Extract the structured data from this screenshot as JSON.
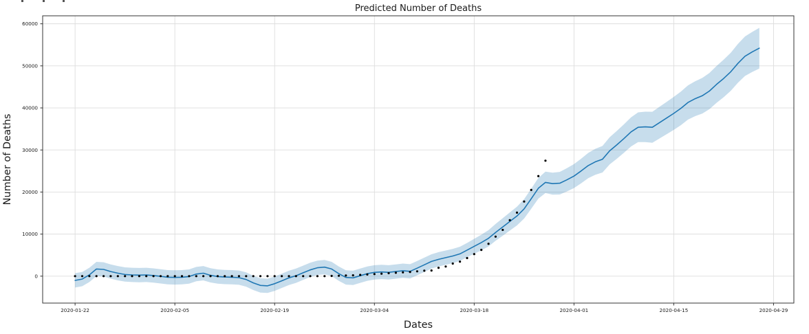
{
  "figure": {
    "background": "#ffffff",
    "top_edge_artifact": {
      "marks_x": [
        31,
        62,
        91
      ]
    }
  },
  "chart_data": {
    "type": "line",
    "title": "Predicted Number of Deaths",
    "xlabel": "Dates",
    "ylabel": "Number of Deaths",
    "x_unit": "days since 2020-01-22 (daily cadence)",
    "start_date": "2020-01-22",
    "grid": true,
    "legend": "none",
    "xlim_days": [
      -4.55,
      100.85
    ],
    "ylim": [
      -6400,
      61900
    ],
    "x_ticks": {
      "days": [
        0,
        14,
        28,
        42,
        56,
        70,
        84,
        98
      ],
      "labels": [
        "2020-01-22",
        "2020-02-05",
        "2020-02-19",
        "2020-03-04",
        "2020-03-18",
        "2020-04-01",
        "2020-04-15",
        "2020-04-29"
      ]
    },
    "y_ticks": {
      "values": [
        0,
        10000,
        20000,
        30000,
        40000,
        50000,
        60000
      ],
      "labels": [
        "0",
        "10000",
        "20000",
        "30000",
        "40000",
        "50000",
        "60000"
      ]
    },
    "colors": {
      "predicted_line": "#1f77b4",
      "confidence_band": "rgba(31,119,180,0.25)",
      "actual_dots": "#000000",
      "grid": "#dddddd",
      "spine": "#333333",
      "tick_text": "#1a1a1a"
    },
    "series": [
      {
        "name": "predicted",
        "style": "line",
        "first_day": 0,
        "values": [
          -1000,
          -700,
          300,
          1700,
          1600,
          1100,
          700,
          400,
          300,
          250,
          300,
          150,
          -50,
          -250,
          -300,
          -250,
          -100,
          500,
          700,
          200,
          -100,
          -200,
          -250,
          -350,
          -800,
          -1600,
          -2200,
          -2300,
          -1800,
          -1100,
          -400,
          100,
          800,
          1500,
          2000,
          2150,
          1700,
          600,
          -300,
          -400,
          100,
          600,
          900,
          1000,
          900,
          1100,
          1300,
          1150,
          1900,
          2700,
          3500,
          4000,
          4400,
          4800,
          5300,
          6200,
          7100,
          8000,
          9000,
          10400,
          11700,
          13000,
          14300,
          16000,
          18400,
          20900,
          22300,
          22000,
          22100,
          22900,
          23800,
          25000,
          26300,
          27200,
          27800,
          29800,
          31200,
          32700,
          34300,
          35400,
          35500,
          35400,
          36500,
          37600,
          38700,
          39900,
          41300,
          42200,
          42900,
          44000,
          45600,
          47000,
          48600,
          50600,
          52300,
          53300,
          54200
        ]
      },
      {
        "name": "confidence-band",
        "style": "band",
        "first_day": 0,
        "half_width": [
          1700,
          1700,
          1700,
          1700,
          1700,
          1700,
          1700,
          1700,
          1700,
          1700,
          1700,
          1700,
          1700,
          1700,
          1700,
          1700,
          1700,
          1700,
          1700,
          1700,
          1700,
          1700,
          1700,
          1700,
          1700,
          1700,
          1700,
          1700,
          1700,
          1700,
          1700,
          1700,
          1700,
          1700,
          1700,
          1700,
          1700,
          1700,
          1700,
          1700,
          1700,
          1700,
          1700,
          1700,
          1700,
          1700,
          1700,
          1700,
          1700,
          1700,
          1700,
          1700,
          1700,
          1700,
          1700,
          1700,
          1780,
          1850,
          1930,
          2000,
          2080,
          2160,
          2230,
          2310,
          2390,
          2460,
          2540,
          2620,
          2690,
          2770,
          2850,
          2920,
          3000,
          3080,
          3150,
          3230,
          3310,
          3380,
          3460,
          3540,
          3610,
          3690,
          3770,
          3840,
          3920,
          4000,
          4070,
          4150,
          4230,
          4300,
          4380,
          4460,
          4530,
          4610,
          4690,
          4760,
          4840
        ]
      },
      {
        "name": "actual",
        "style": "scatter",
        "first_day": 0,
        "values": [
          0,
          0,
          0,
          0,
          0,
          0,
          0,
          0,
          0,
          0,
          0,
          0,
          0,
          0,
          0,
          0,
          0,
          0,
          0,
          0,
          0,
          0,
          0,
          0,
          0,
          0,
          0,
          0,
          0,
          0,
          0,
          0,
          0,
          0,
          0,
          0,
          50,
          100,
          150,
          200,
          300,
          400,
          500,
          600,
          700,
          800,
          900,
          1000,
          1150,
          1300,
          1350,
          2000,
          2300,
          3000,
          3450,
          4300,
          5250,
          6250,
          7700,
          9400,
          11000,
          13300,
          15100,
          17750,
          20500,
          23800,
          27450
        ]
      }
    ]
  }
}
